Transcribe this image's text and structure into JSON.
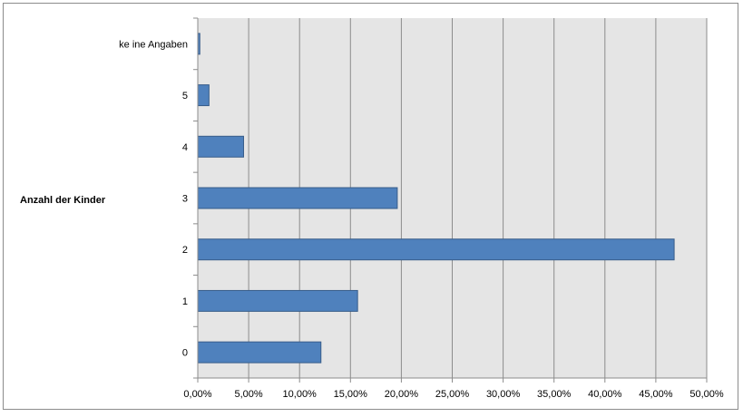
{
  "chart_data": {
    "type": "bar",
    "orientation": "horizontal",
    "ylabel": "Anzahl  der Kinder",
    "xlabel": "",
    "categories": [
      "0",
      "1",
      "2",
      "3",
      "4",
      "5",
      "ke ine Angaben"
    ],
    "values": [
      12.1,
      15.7,
      46.8,
      19.6,
      4.5,
      1.1,
      0.2
    ],
    "xlim": [
      0,
      50
    ],
    "xticks": [
      "0,00%",
      "5,00%",
      "10,00%",
      "15,00%",
      "20,00%",
      "25,00%",
      "30,00%",
      "35,00%",
      "40,00%",
      "45,00%",
      "50,00%"
    ],
    "bar_color": "#4f81bd",
    "bar_edge_color": "#385d8a",
    "plot_background": "#e5e5e5",
    "grid": true,
    "legend": "none"
  }
}
